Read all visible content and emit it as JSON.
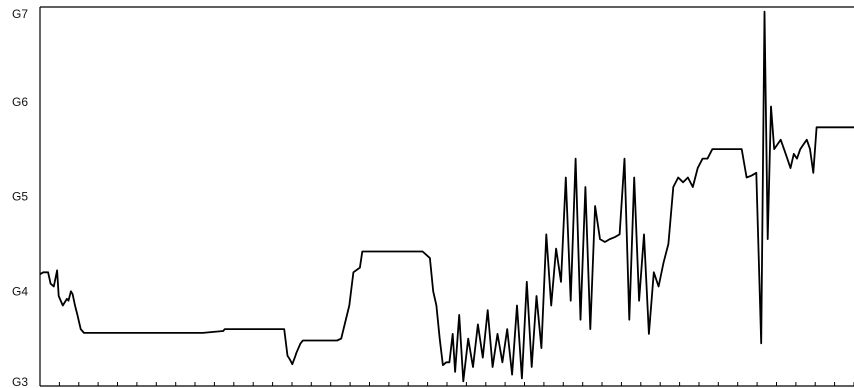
{
  "chart_data": {
    "type": "line",
    "title": "",
    "xlabel": "",
    "ylabel": "",
    "y_ticks": [
      "G3",
      "G4",
      "G5",
      "G6",
      "G7"
    ],
    "ylim": [
      3,
      7
    ],
    "xlim": [
      0,
      100
    ],
    "x_minor_tick_count": 42,
    "grid": false,
    "line_color": "#000000",
    "series": [
      {
        "x": [
          0.0,
          0.4,
          1.0,
          1.3,
          1.7,
          2.1,
          2.3,
          2.8,
          3.3,
          3.5,
          3.8,
          4.0,
          4.3,
          4.6,
          5.0,
          5.4,
          6.1,
          6.4,
          7.2,
          8.0,
          8.7,
          9.0,
          9.2,
          9.4,
          12.0,
          16.0,
          20.0,
          22.5,
          22.7,
          24.0,
          28.0,
          30.0,
          30.4,
          30.7,
          31.0,
          31.3,
          31.5,
          32.0,
          32.3,
          32.8,
          35.5,
          36.5,
          37.0,
          38.0,
          38.5,
          39.3,
          39.6,
          40.0,
          44.0,
          47.0,
          47.9,
          48.3,
          48.7,
          49.1,
          49.5,
          49.9,
          50.3,
          50.7,
          51.0,
          51.5,
          52.0,
          52.6,
          53.2,
          53.8,
          54.4,
          55.0,
          55.6,
          56.2,
          56.8,
          57.4,
          58.0,
          58.6,
          59.2,
          59.8,
          60.4,
          61.0,
          61.6,
          62.2,
          62.8,
          63.4,
          64.0,
          64.6,
          65.2,
          65.8,
          66.4,
          67.0,
          67.6,
          68.2,
          68.8,
          69.4,
          70.0,
          70.6,
          71.2,
          71.8,
          72.4,
          73.0,
          73.6,
          74.2,
          74.8,
          75.4,
          76.0,
          76.6,
          77.2,
          77.8,
          78.4,
          79.0,
          79.6,
          80.2,
          80.8,
          81.4,
          82.0,
          82.6,
          83.2,
          83.8,
          84.4,
          85.0,
          85.6,
          86.2,
          86.8,
          87.4,
          88.0,
          88.6,
          89.0,
          89.4,
          89.8,
          90.2,
          90.6,
          91.0,
          91.4,
          91.8,
          92.2,
          92.6,
          93.0,
          93.4,
          93.8,
          94.2,
          94.6,
          95.0,
          95.4,
          95.8,
          96.2,
          96.6,
          100.0
        ],
        "values": [
          4.18,
          4.2,
          4.2,
          4.08,
          4.05,
          4.22,
          3.95,
          3.85,
          3.92,
          3.9,
          4.0,
          3.97,
          3.85,
          3.75,
          3.6,
          3.56,
          3.56,
          3.56,
          3.56,
          3.56,
          3.56,
          3.56,
          3.56,
          3.56,
          3.56,
          3.56,
          3.56,
          3.58,
          3.6,
          3.6,
          3.6,
          3.6,
          3.32,
          3.28,
          3.23,
          3.3,
          3.35,
          3.45,
          3.48,
          3.48,
          3.48,
          3.48,
          3.5,
          3.85,
          4.2,
          4.25,
          4.42,
          4.42,
          4.42,
          4.42,
          4.35,
          4.0,
          3.85,
          3.5,
          3.22,
          3.25,
          3.25,
          3.55,
          3.15,
          3.75,
          3.05,
          3.5,
          3.2,
          3.65,
          3.3,
          3.8,
          3.2,
          3.55,
          3.25,
          3.6,
          3.12,
          3.85,
          3.08,
          4.1,
          3.2,
          3.95,
          3.4,
          4.6,
          3.85,
          4.45,
          4.1,
          5.2,
          3.9,
          5.4,
          3.7,
          5.1,
          3.6,
          4.9,
          4.55,
          4.52,
          4.55,
          4.57,
          4.6,
          5.4,
          3.7,
          5.2,
          3.9,
          4.6,
          3.55,
          4.2,
          4.05,
          4.3,
          4.5,
          5.1,
          5.2,
          5.15,
          5.2,
          5.1,
          5.3,
          5.4,
          5.4,
          5.5,
          5.5,
          5.5,
          5.5,
          5.5,
          5.5,
          5.5,
          5.2,
          5.22,
          5.25,
          3.45,
          6.95,
          4.55,
          5.95,
          5.5,
          5.55,
          5.6,
          5.5,
          5.4,
          5.3,
          5.45,
          5.4,
          5.5,
          5.55,
          5.6,
          5.5,
          5.25,
          5.73,
          5.73,
          5.73,
          5.73,
          5.73
        ]
      }
    ]
  }
}
